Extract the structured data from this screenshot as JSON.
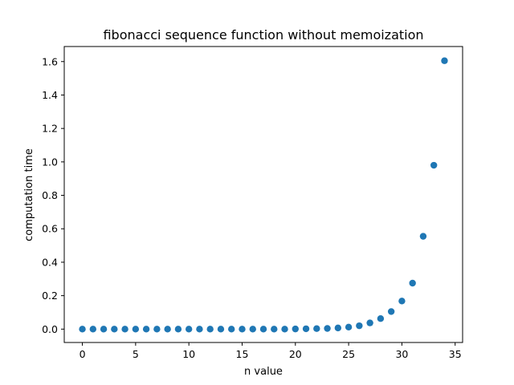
{
  "chart_data": {
    "type": "scatter",
    "title": "fibonacci sequence function without memoization",
    "xlabel": "n value",
    "ylabel": "computation time",
    "xlim": [
      -1.7,
      35.7
    ],
    "ylim": [
      -0.08,
      1.69
    ],
    "xticks": [
      0,
      5,
      10,
      15,
      20,
      25,
      30,
      35
    ],
    "xtick_labels": [
      "0",
      "5",
      "10",
      "15",
      "20",
      "25",
      "30",
      "35"
    ],
    "yticks": [
      0.0,
      0.2,
      0.4,
      0.6,
      0.8,
      1.0,
      1.2,
      1.4,
      1.6
    ],
    "ytick_labels": [
      "0.0",
      "0.2",
      "0.4",
      "0.6",
      "0.8",
      "1.0",
      "1.2",
      "1.4",
      "1.6"
    ],
    "grid": false,
    "legend": "none",
    "marker_color": "#1f77b4",
    "x": [
      0,
      1,
      2,
      3,
      4,
      5,
      6,
      7,
      8,
      9,
      10,
      11,
      12,
      13,
      14,
      15,
      16,
      17,
      18,
      19,
      20,
      21,
      22,
      23,
      24,
      25,
      26,
      27,
      28,
      29,
      30,
      31,
      32,
      33,
      34
    ],
    "y": [
      0,
      0,
      0,
      0,
      0,
      0,
      0,
      0,
      0,
      0,
      0,
      0,
      0,
      0,
      0,
      0,
      0,
      0,
      0,
      0,
      0.001,
      0.002,
      0.003,
      0.004,
      0.007,
      0.012,
      0.02,
      0.037,
      0.063,
      0.105,
      0.168,
      0.275,
      0.555,
      0.98,
      1.605
    ]
  }
}
